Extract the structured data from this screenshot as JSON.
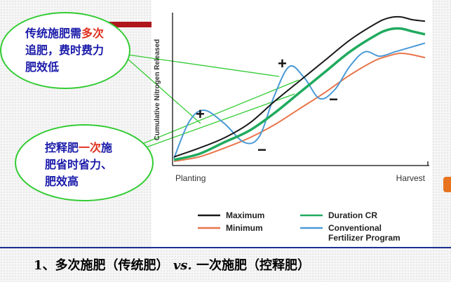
{
  "bubbles": {
    "top": {
      "line1_a": "传统施肥需",
      "line1_b": "多次",
      "line2": "追肥，费时费力",
      "line3": "肥效低"
    },
    "bottom": {
      "line1_a": "控释肥",
      "line1_b": "一次",
      "line1_c": "施",
      "line2": "肥省时省力、",
      "line3": "肥效高"
    }
  },
  "chart": {
    "ylabel": "Cumulative Nitrogen Released",
    "x_start": "Planting",
    "x_end": "Harvest",
    "marks": [
      "+",
      "+",
      "−",
      "−"
    ]
  },
  "chart_data": {
    "type": "line",
    "title": "",
    "xlabel": "",
    "ylabel": "Cumulative Nitrogen Released",
    "x_ticks": [
      "Planting",
      "Harvest"
    ],
    "grid": false,
    "legend_position": "bottom",
    "series": [
      {
        "name": "Maximum",
        "color": "#1a1a1a",
        "x": [
          0,
          0.1,
          0.2,
          0.3,
          0.4,
          0.5,
          0.6,
          0.7,
          0.8,
          0.85,
          0.9,
          0.95,
          1.0
        ],
        "y": [
          0.04,
          0.1,
          0.17,
          0.27,
          0.42,
          0.56,
          0.7,
          0.84,
          0.95,
          0.99,
          1.0,
          0.98,
          0.97
        ]
      },
      {
        "name": "Duration CR",
        "color": "#1faa5e",
        "x": [
          0,
          0.1,
          0.2,
          0.3,
          0.4,
          0.5,
          0.6,
          0.7,
          0.8,
          0.85,
          0.9,
          0.95,
          1.0
        ],
        "y": [
          0.02,
          0.06,
          0.14,
          0.22,
          0.34,
          0.48,
          0.62,
          0.76,
          0.87,
          0.91,
          0.92,
          0.9,
          0.88
        ]
      },
      {
        "name": "Minimum",
        "color": "#e9744a",
        "x": [
          0,
          0.1,
          0.2,
          0.3,
          0.4,
          0.5,
          0.6,
          0.7,
          0.8,
          0.85,
          0.9,
          0.95,
          1.0
        ],
        "y": [
          0.01,
          0.04,
          0.1,
          0.17,
          0.26,
          0.37,
          0.48,
          0.6,
          0.7,
          0.73,
          0.75,
          0.74,
          0.72
        ]
      },
      {
        "name": "Conventional Fertilizer Program",
        "color": "#4a9ad6",
        "x": [
          0,
          0.06,
          0.12,
          0.2,
          0.28,
          0.34,
          0.4,
          0.46,
          0.52,
          0.58,
          0.64,
          0.7,
          0.76,
          0.82,
          0.88,
          0.94,
          1.0
        ],
        "y": [
          0.03,
          0.28,
          0.36,
          0.27,
          0.14,
          0.18,
          0.46,
          0.66,
          0.58,
          0.44,
          0.5,
          0.66,
          0.76,
          0.73,
          0.76,
          0.79,
          0.82
        ]
      }
    ]
  },
  "caption": {
    "prefix": "1、多次施肥（传统肥）",
    "vs": "vs.",
    "suffix": "一次施肥（控释肥）"
  }
}
